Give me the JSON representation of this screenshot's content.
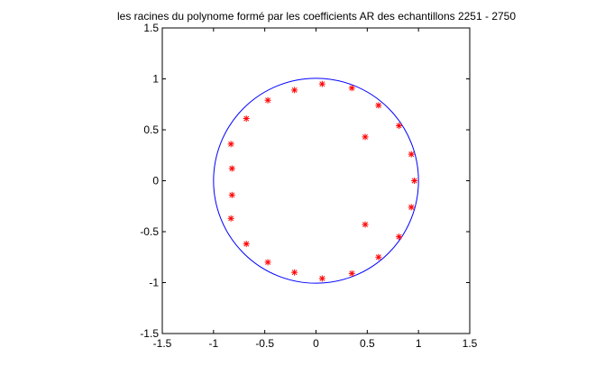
{
  "chart_data": {
    "type": "scatter",
    "title": "les racines du polynome formé par les coefficients AR des echantillons 2251 - 2750",
    "xlabel": "",
    "ylabel": "",
    "xlim": [
      -1.5,
      1.5
    ],
    "ylim": [
      -1.5,
      1.5
    ],
    "xticks": [
      -1.5,
      -1,
      -0.5,
      0,
      0.5,
      1,
      1.5
    ],
    "yticks": [
      -1.5,
      -1,
      -0.5,
      0,
      0.5,
      1,
      1.5
    ],
    "xtick_labels": [
      "-1.5",
      "-1",
      "-0.5",
      "0",
      "0.5",
      "1",
      "1.5"
    ],
    "ytick_labels": [
      "-1.5",
      "-1",
      "-0.5",
      "0",
      "0.5",
      "1",
      "1.5"
    ],
    "grid": false,
    "unit_circle": {
      "center": [
        0,
        0
      ],
      "radius": 1,
      "color": "#0000ff"
    },
    "marker": "*",
    "marker_color": "#ff0000",
    "circle_color": "#0000ff",
    "points": [
      {
        "x": 0.06,
        "y": 0.95
      },
      {
        "x": 0.35,
        "y": 0.91
      },
      {
        "x": 0.61,
        "y": 0.74
      },
      {
        "x": 0.81,
        "y": 0.54
      },
      {
        "x": 0.93,
        "y": 0.26
      },
      {
        "x": 0.96,
        "y": 0.0
      },
      {
        "x": 0.93,
        "y": -0.26
      },
      {
        "x": 0.81,
        "y": -0.55
      },
      {
        "x": 0.61,
        "y": -0.75
      },
      {
        "x": 0.35,
        "y": -0.91
      },
      {
        "x": 0.06,
        "y": -0.96
      },
      {
        "x": -0.21,
        "y": -0.9
      },
      {
        "x": -0.47,
        "y": -0.8
      },
      {
        "x": -0.68,
        "y": -0.62
      },
      {
        "x": -0.83,
        "y": -0.37
      },
      {
        "x": -0.82,
        "y": -0.14
      },
      {
        "x": -0.82,
        "y": 0.12
      },
      {
        "x": -0.83,
        "y": 0.36
      },
      {
        "x": -0.68,
        "y": 0.61
      },
      {
        "x": -0.47,
        "y": 0.79
      },
      {
        "x": -0.21,
        "y": 0.89
      },
      {
        "x": 0.48,
        "y": 0.43
      },
      {
        "x": 0.48,
        "y": -0.43
      }
    ]
  }
}
